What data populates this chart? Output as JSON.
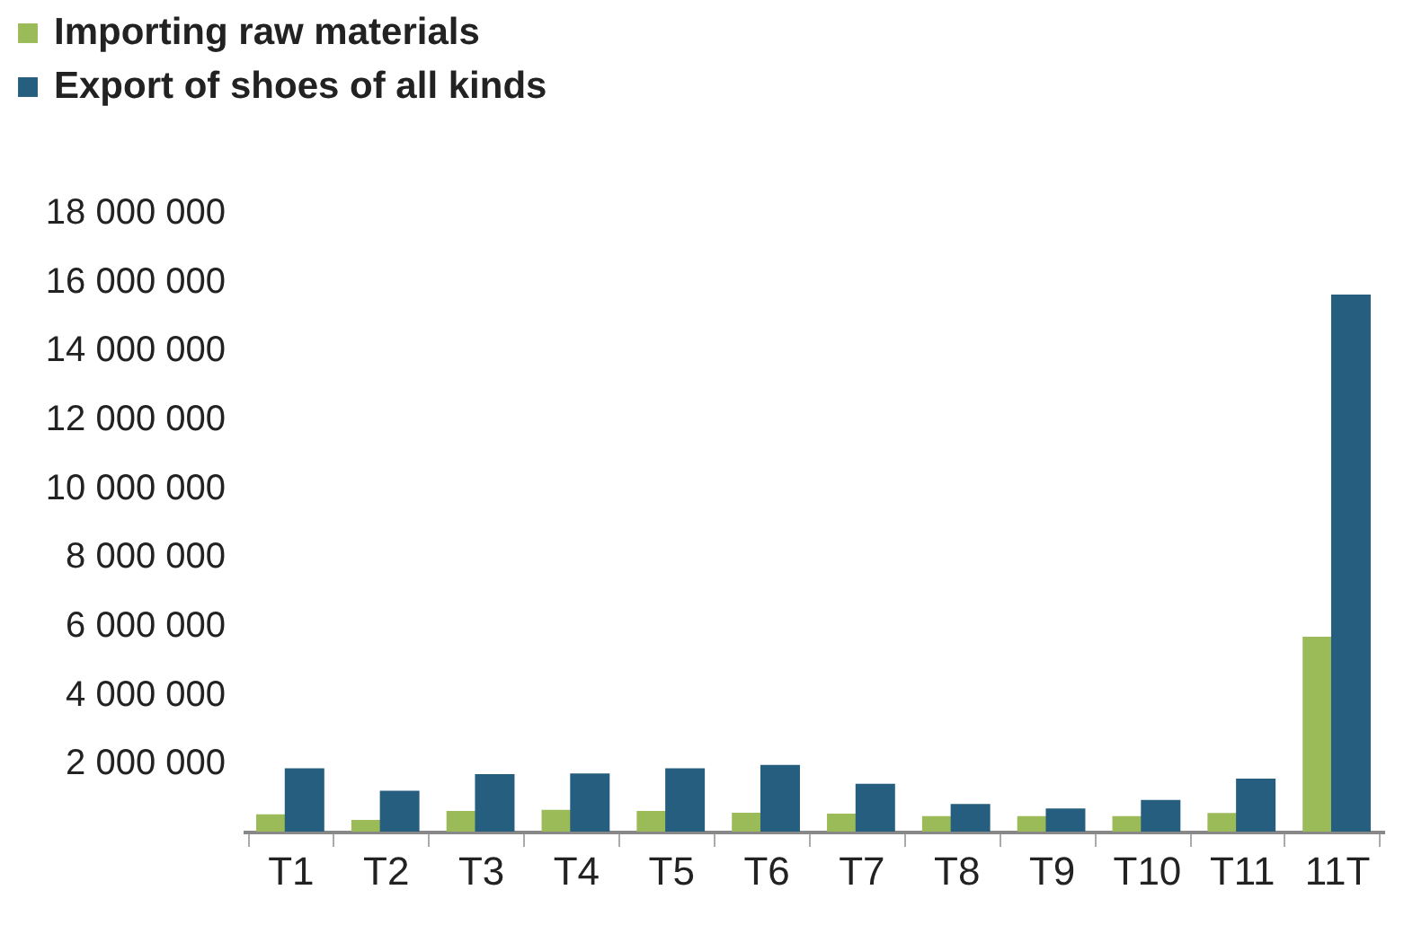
{
  "chart_data": {
    "type": "bar",
    "categories": [
      "T1",
      "T2",
      "T3",
      "T4",
      "T5",
      "T6",
      "T7",
      "T8",
      "T9",
      "T10",
      "T11",
      "11T"
    ],
    "series": [
      {
        "name": "Importing raw materials",
        "color": "#9bbb59",
        "values": [
          500000,
          340000,
          600000,
          630000,
          600000,
          550000,
          520000,
          450000,
          450000,
          450000,
          540000,
          5660000
        ]
      },
      {
        "name": "Export of shoes of all kinds",
        "color": "#255e7e",
        "values": [
          1840000,
          1190000,
          1670000,
          1690000,
          1840000,
          1940000,
          1390000,
          800000,
          670000,
          920000,
          1540000,
          15600000
        ]
      }
    ],
    "ylim": [
      0,
      18000000
    ],
    "yticks": [
      {
        "value": 2000000,
        "label": "2 000 000"
      },
      {
        "value": 4000000,
        "label": "4 000 000"
      },
      {
        "value": 6000000,
        "label": "6 000 000"
      },
      {
        "value": 8000000,
        "label": "8 000 000"
      },
      {
        "value": 10000000,
        "label": "10 000 000"
      },
      {
        "value": 12000000,
        "label": "12 000 000"
      },
      {
        "value": 14000000,
        "label": "14 000 000"
      },
      {
        "value": 16000000,
        "label": "16 000 000"
      },
      {
        "value": 18000000,
        "label": "18 000 000"
      }
    ],
    "grid": false,
    "legend": "top left"
  }
}
